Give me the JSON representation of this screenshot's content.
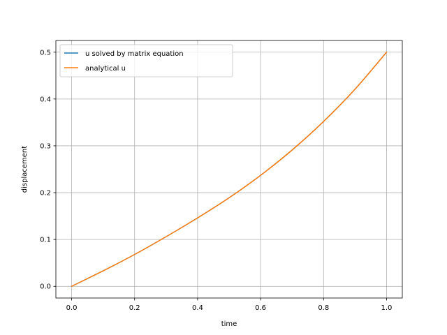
{
  "chart_data": {
    "type": "line",
    "title": "",
    "xlabel": "time",
    "ylabel": "displacement",
    "xlim": [
      -0.05,
      1.05
    ],
    "ylim": [
      -0.025,
      0.525
    ],
    "grid": true,
    "legend_position": "upper left",
    "xticks": [
      {
        "value": 0.0,
        "label": "0.0"
      },
      {
        "value": 0.2,
        "label": "0.2"
      },
      {
        "value": 0.4,
        "label": "0.4"
      },
      {
        "value": 0.6,
        "label": "0.6"
      },
      {
        "value": 0.8,
        "label": "0.8"
      },
      {
        "value": 1.0,
        "label": "1.0"
      }
    ],
    "yticks": [
      {
        "value": 0.0,
        "label": "0.0"
      },
      {
        "value": 0.1,
        "label": "0.1"
      },
      {
        "value": 0.2,
        "label": "0.2"
      },
      {
        "value": 0.3,
        "label": "0.3"
      },
      {
        "value": 0.4,
        "label": "0.4"
      },
      {
        "value": 0.5,
        "label": "0.5"
      }
    ],
    "series": [
      {
        "name": "u solved by matrix equation",
        "color": "#1f77b4",
        "x": [
          0.0,
          0.1,
          0.2,
          0.3,
          0.4,
          0.5,
          0.6,
          0.7,
          0.8,
          0.9,
          1.0
        ],
        "y": [
          0.0,
          0.033,
          0.068,
          0.106,
          0.146,
          0.189,
          0.237,
          0.291,
          0.352,
          0.421,
          0.5
        ]
      },
      {
        "name": "analytical u",
        "color": "#ff7f0e",
        "x": [
          0.0,
          0.1,
          0.2,
          0.3,
          0.4,
          0.5,
          0.6,
          0.7,
          0.8,
          0.9,
          1.0
        ],
        "y": [
          0.0,
          0.033,
          0.068,
          0.106,
          0.146,
          0.189,
          0.237,
          0.291,
          0.352,
          0.421,
          0.5
        ]
      }
    ]
  }
}
